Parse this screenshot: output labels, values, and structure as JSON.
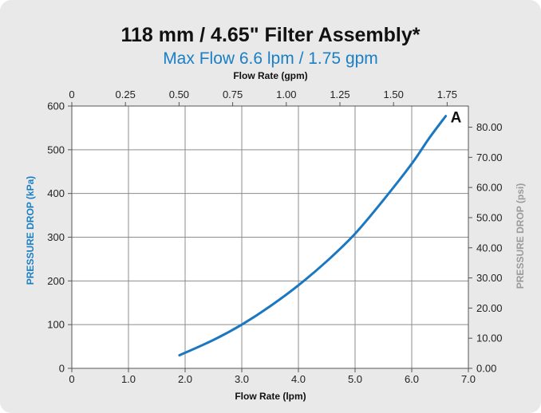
{
  "chart_data": {
    "type": "line",
    "title": "118 mm / 4.65\" Filter Assembly*",
    "subtitle": "Max Flow 6.6 lpm / 1.75 gpm",
    "xlabel": "Flow Rate (lpm)",
    "x2label": "Flow Rate (gpm)",
    "ylabel": "PRESSURE DROP (kPa)",
    "y2label": "PRESSURE DROP (psi)",
    "xlim": [
      0,
      7
    ],
    "x2lim": [
      0,
      1.849
    ],
    "ylim": [
      0,
      600
    ],
    "y2lim": [
      0,
      87.02
    ],
    "x_ticks": [
      "0",
      "1.0",
      "2.0",
      "3.0",
      "4.0",
      "5.0",
      "6.0",
      "7.0"
    ],
    "x2_ticks": [
      "0",
      "0.25",
      "0.50",
      "0.75",
      "1.00",
      "1.25",
      "1.50",
      "1.75"
    ],
    "y_ticks": [
      "0",
      "100",
      "200",
      "300",
      "400",
      "500",
      "600"
    ],
    "y2_ticks": [
      "0.00",
      "10.00",
      "20.00",
      "30.00",
      "40.00",
      "50.00",
      "60.00",
      "70.00",
      "80.00"
    ],
    "grid": true,
    "series": [
      {
        "name": "A",
        "x": [
          1.9,
          2.5,
          3.0,
          3.5,
          4.0,
          4.5,
          5.0,
          5.5,
          6.0,
          6.3,
          6.6
        ],
        "y": [
          30,
          65,
          100,
          142,
          190,
          245,
          308,
          385,
          468,
          525,
          577
        ]
      }
    ],
    "annotation": "A",
    "colors": {
      "curve": "#1a78c2",
      "left_axis_title": "#1a7fc4",
      "right_axis_title": "#9a9a9a",
      "subtitle": "#1a7fc4"
    }
  }
}
